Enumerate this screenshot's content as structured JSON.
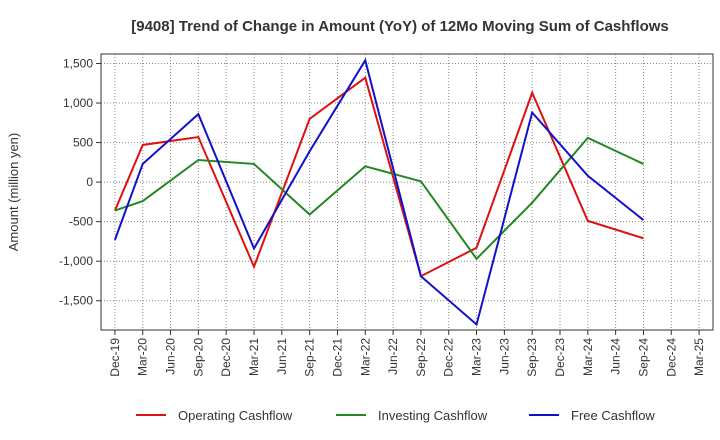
{
  "chart_data": {
    "type": "line",
    "title": "[9408]  Trend of Change in Amount (YoY) of 12Mo Moving Sum of Cashflows",
    "xlabel": "",
    "ylabel": "Amount (million yen)",
    "ylim": [
      -1870,
      1620
    ],
    "yticks": [
      1500,
      1000,
      500,
      0,
      -500,
      -1000,
      -1500
    ],
    "ytick_labels": [
      "1,500",
      "1,000",
      "500",
      "0",
      "-500",
      "-1,000",
      "-1,500"
    ],
    "categories": [
      "Dec-19",
      "Mar-20",
      "Jun-20",
      "Sep-20",
      "Dec-20",
      "Mar-21",
      "Jun-21",
      "Sep-21",
      "Dec-21",
      "Mar-22",
      "Jun-22",
      "Sep-22",
      "Dec-22",
      "Mar-23",
      "Jun-23",
      "Sep-23",
      "Dec-23",
      "Mar-24",
      "Jun-24",
      "Sep-24",
      "Dec-24",
      "Mar-25"
    ],
    "grid": true,
    "legend_position": "bottom",
    "series": [
      {
        "name": "Operating Cashflow",
        "color": "#dd1111",
        "values": [
          -360,
          470,
          null,
          570,
          null,
          -1070,
          null,
          800,
          null,
          1320,
          null,
          -1190,
          null,
          -830,
          null,
          1130,
          null,
          -490,
          null,
          -710,
          null,
          null
        ]
      },
      {
        "name": "Investing Cashflow",
        "color": "#228822",
        "values": [
          -360,
          -240,
          null,
          280,
          null,
          230,
          null,
          -410,
          null,
          200,
          null,
          10,
          null,
          -970,
          null,
          -260,
          null,
          560,
          null,
          230,
          null,
          null
        ]
      },
      {
        "name": "Free Cashflow",
        "color": "#1111cc",
        "values": [
          -730,
          230,
          null,
          860,
          null,
          -840,
          null,
          390,
          null,
          1540,
          null,
          -1190,
          null,
          -1800,
          null,
          880,
          null,
          80,
          null,
          -480,
          null,
          null
        ]
      }
    ]
  }
}
